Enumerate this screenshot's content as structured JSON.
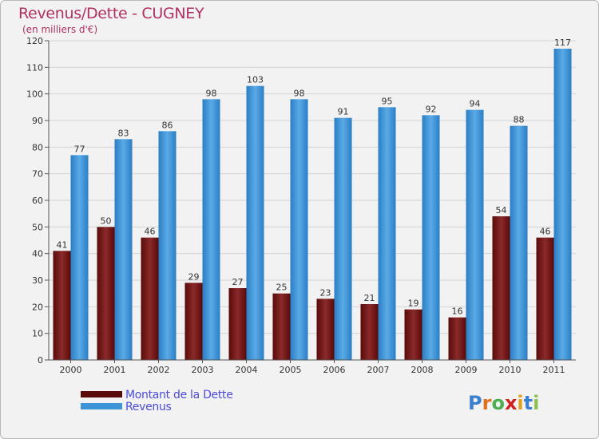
{
  "title": "Revenus/Dette - CUGNEY",
  "subtitle": "(en milliers d'€)",
  "colors": {
    "dette": "#7a1a1a",
    "revenus": "#3d95d8",
    "title": "#b03060",
    "legend_text": "#4b4bd8"
  },
  "legend": [
    {
      "label": "Montant de la Dette",
      "color": "#5a0a0a"
    },
    {
      "label": "Revenus",
      "color": "#3d95d8"
    }
  ],
  "logo": {
    "letters": [
      "P",
      "r",
      "o",
      "x",
      "i",
      "t",
      "i"
    ],
    "colors": [
      "#3a7fd0",
      "#e07020",
      "#4caf50",
      "#d02020",
      "#e0a020",
      "#3a7fd0",
      "#8bc34a"
    ]
  },
  "chart_data": {
    "type": "bar",
    "title": "Revenus/Dette - CUGNEY",
    "ylabel": "(en milliers d'€)",
    "xlabel": "",
    "ylim": [
      0,
      120
    ],
    "yticks": [
      0,
      10,
      20,
      30,
      40,
      50,
      60,
      70,
      80,
      90,
      100,
      110,
      120
    ],
    "grid": true,
    "categories": [
      "2000",
      "2001",
      "2002",
      "2003",
      "2004",
      "2005",
      "2006",
      "2007",
      "2008",
      "2009",
      "2010",
      "2011"
    ],
    "series": [
      {
        "name": "Montant de la Dette",
        "values": [
          41,
          50,
          46,
          29,
          27,
          25,
          23,
          21,
          19,
          16,
          54,
          46
        ]
      },
      {
        "name": "Revenus",
        "values": [
          77,
          83,
          86,
          98,
          103,
          98,
          91,
          95,
          92,
          94,
          88,
          117
        ]
      }
    ]
  }
}
